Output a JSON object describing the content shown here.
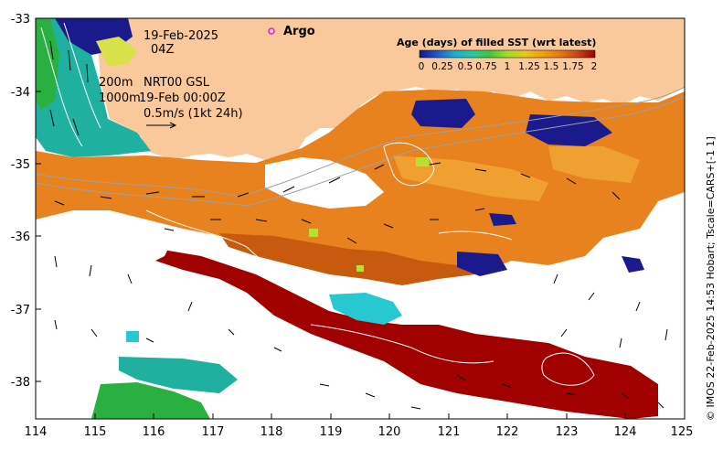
{
  "map": {
    "title_date": "19-Feb-2025",
    "title_time": "04Z",
    "argo_label": "Argo",
    "line1_left": "200m",
    "line1_right": "NRT00 GSL",
    "line2_left": "1000m",
    "line2_right": "19-Feb 00:00Z",
    "current_scale": "0.5m/s (1kt 24h)",
    "credit": "© IMOS 22-Feb-2025 14:53 Hobart; Tscale=CARS+[-1 1]",
    "x_ticks": [
      "114",
      "115",
      "116",
      "117",
      "118",
      "119",
      "120",
      "121",
      "122",
      "123",
      "124",
      "125"
    ],
    "y_ticks": [
      "-33",
      "-34",
      "-35",
      "-36",
      "-37",
      "-38"
    ],
    "legend": {
      "title": "Age (days) of filled SST (wrt latest)",
      "ticks": [
        "0",
        "0.25",
        "0.5",
        "0.75",
        "1",
        "1.25",
        "1.5",
        "1.75",
        "2"
      ],
      "colors": [
        "#14148c",
        "#1e5ac8",
        "#1eaad2",
        "#28c8a0",
        "#3cc83c",
        "#a0dc28",
        "#e6c81e",
        "#f0a014",
        "#e67814",
        "#c84614",
        "#a00000"
      ]
    },
    "colors": {
      "land": "#f9c89b",
      "recent_blue": "#1a1a8c",
      "teal": "#20b0a0",
      "cyan": "#28c8d0",
      "green": "#2ab040",
      "lime": "#b8e030",
      "orange": "#e8821e",
      "dark_orange": "#c85a10",
      "dark_red": "#a00000",
      "light_orange": "#f0a030",
      "argo": "#e020e0"
    }
  }
}
